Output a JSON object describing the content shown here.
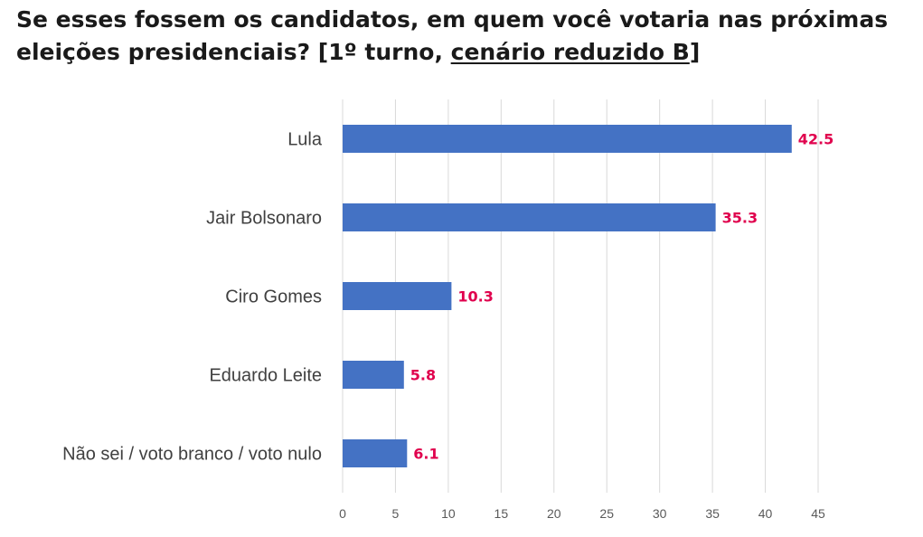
{
  "title": {
    "part1": "Se esses fossem os candidatos, em quem você votaria nas próximas eleições presidenciais? [1º turno, ",
    "underlined": "cenário reduzido B",
    "part2": "]"
  },
  "colors": {
    "bar": "#4472c4",
    "data_label": "#e0004d",
    "grid": "#d9d9d9"
  },
  "chart_data": {
    "type": "bar",
    "orientation": "horizontal",
    "categories": [
      "Lula",
      "Jair Bolsonaro",
      "Ciro Gomes",
      "Eduardo Leite",
      "Não sei / voto branco / voto nulo"
    ],
    "values": [
      42.5,
      35.3,
      10.3,
      5.8,
      6.1
    ],
    "value_labels": [
      "42.5",
      "35.3",
      "10.3",
      "5.8",
      "6.1"
    ],
    "xlim": [
      0,
      45
    ],
    "xticks": [
      0,
      5,
      10,
      15,
      20,
      25,
      30,
      35,
      40,
      45
    ],
    "grid": true,
    "legend": "none"
  }
}
